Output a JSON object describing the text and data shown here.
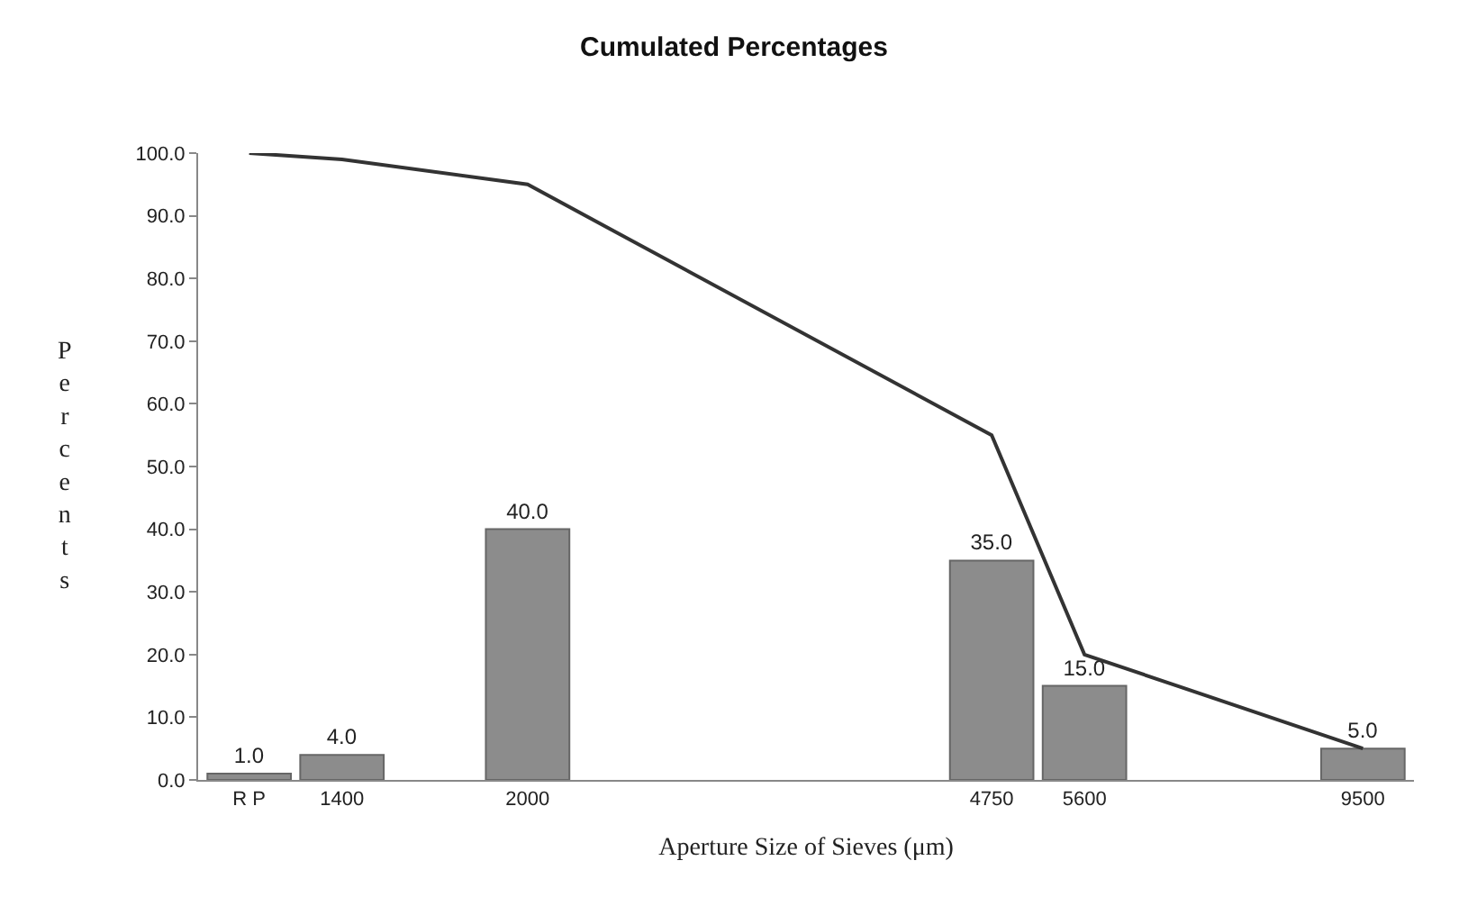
{
  "chart_data": {
    "type": "bar",
    "title": "Cumulated Percentages",
    "xlabel": "Aperture Size of Sieves (μm)",
    "ylabel": "Percents",
    "categories": [
      "R P",
      "1400",
      null,
      "2000",
      null,
      null,
      null,
      null,
      "4750",
      "5600",
      null,
      null,
      "9500"
    ],
    "series": [
      {
        "color": "#8c8c8c",
        "values": [
          1.0,
          4.0,
          null,
          40.0,
          null,
          null,
          null,
          null,
          35.0,
          15.0,
          null,
          null,
          5.0
        ],
        "value_labels": [
          "1.0",
          "4.0",
          null,
          "40.0",
          null,
          null,
          null,
          null,
          "35.0",
          "15.0",
          null,
          null,
          "5.0"
        ]
      },
      {
        "type": "line",
        "color": "#333333",
        "values": [
          100,
          99,
          null,
          95,
          null,
          null,
          null,
          null,
          55,
          20,
          null,
          null,
          5
        ]
      }
    ],
    "ylim": [
      0,
      100
    ],
    "yticks": [
      {
        "value": 0,
        "label": "0.0"
      },
      {
        "value": 10,
        "label": "10.0"
      },
      {
        "value": 20,
        "label": "20.0"
      },
      {
        "value": 30,
        "label": "30.0"
      },
      {
        "value": 40,
        "label": "40.0"
      },
      {
        "value": 50,
        "label": "50.0"
      },
      {
        "value": 60,
        "label": "60.0"
      },
      {
        "value": 70,
        "label": "70.0"
      },
      {
        "value": 80,
        "label": "80.0"
      },
      {
        "value": 90,
        "label": "90.0"
      },
      {
        "value": 100,
        "label": "100.0"
      }
    ],
    "grid": false,
    "marker": "none",
    "line_style": "solid"
  }
}
